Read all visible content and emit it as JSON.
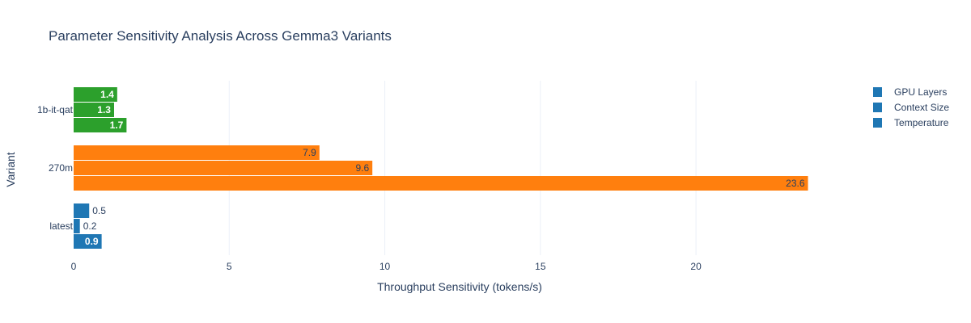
{
  "chart_data": {
    "type": "bar",
    "orientation": "horizontal",
    "title": "Parameter Sensitivity Analysis Across Gemma3 Variants",
    "xlabel": "Throughput Sensitivity (tokens/s)",
    "ylabel": "Variant",
    "categories": [
      "latest",
      "270m",
      "1b-it-qat"
    ],
    "series": [
      {
        "name": "GPU Layers",
        "values": [
          0.5,
          7.9,
          1.4
        ]
      },
      {
        "name": "Context Size",
        "values": [
          0.2,
          9.6,
          1.3
        ]
      },
      {
        "name": "Temperature",
        "values": [
          0.9,
          23.6,
          1.7
        ]
      }
    ],
    "category_colors": {
      "latest": "#1f77b4",
      "270m": "#ff7f0e",
      "1b-it-qat": "#2ca02c"
    },
    "legend_color": "#1f77b4",
    "x_ticks": [
      0,
      5,
      10,
      15,
      20
    ],
    "xlim": [
      0,
      23.6
    ],
    "grid": true,
    "legend_position": "top-right"
  }
}
